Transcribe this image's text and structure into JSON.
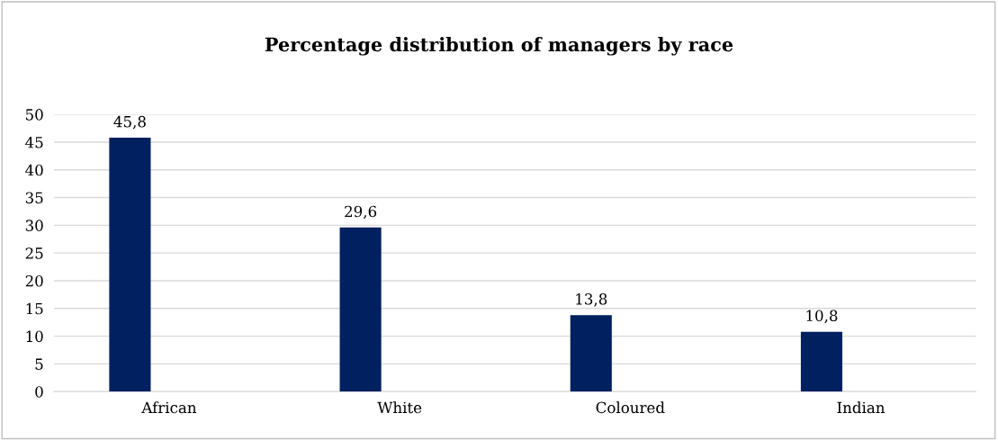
{
  "chart_data": {
    "type": "bar",
    "title": "Percentage distribution of managers by race",
    "categories": [
      "African",
      "White",
      "Coloured",
      "Indian"
    ],
    "values": [
      45.8,
      29.6,
      13.8,
      10.8
    ],
    "value_labels": [
      "45,8",
      "29,6",
      "13,8",
      "10,8"
    ],
    "color": "#002060",
    "ylim": [
      0,
      50
    ],
    "yticks": [
      0,
      5,
      10,
      15,
      20,
      25,
      30,
      35,
      40,
      45,
      50
    ],
    "grid": "y",
    "legend": false
  }
}
